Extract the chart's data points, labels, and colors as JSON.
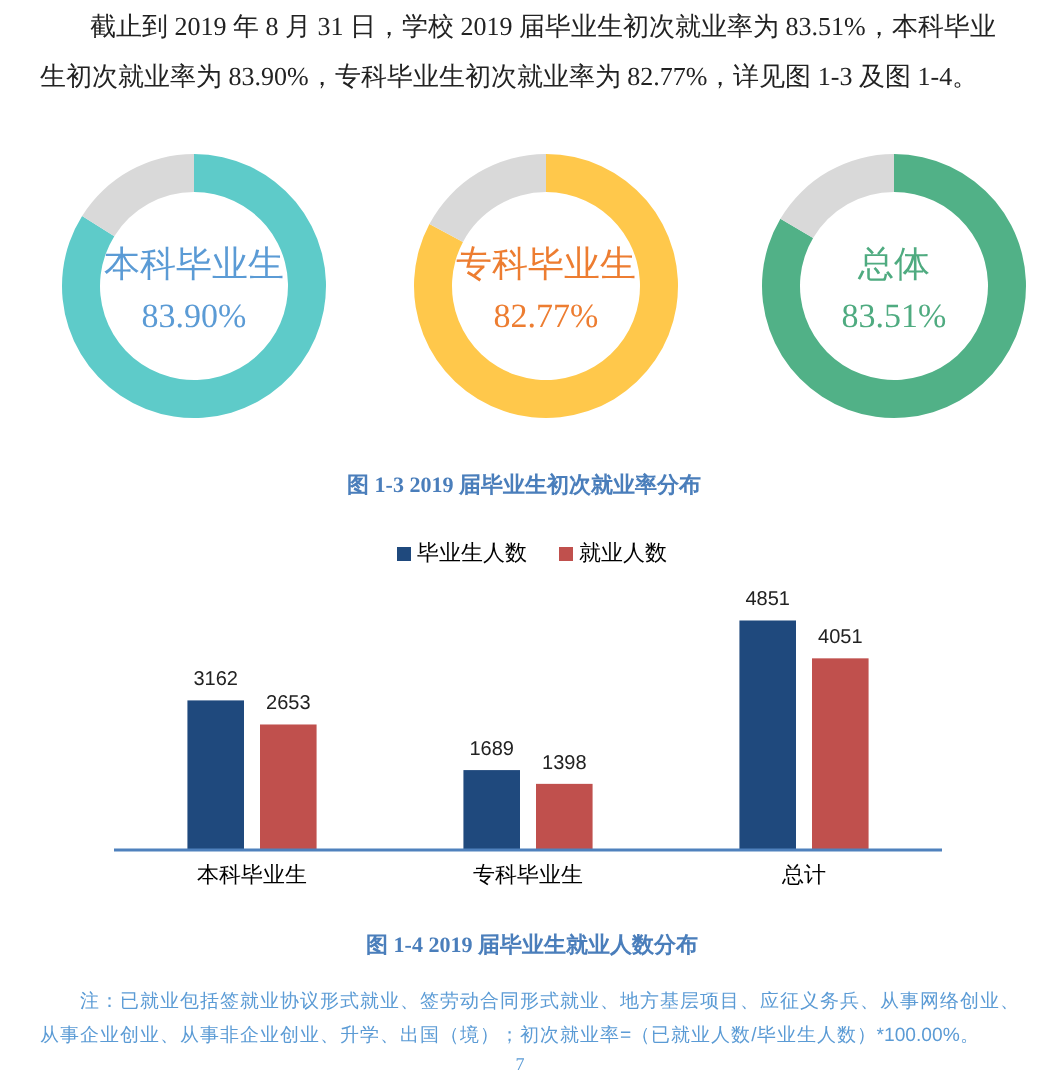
{
  "chart_data": [
    {
      "type": "donut",
      "title": "本科毕业生",
      "categories": [
        null,
        null
      ],
      "values": [
        83.9,
        16.1
      ],
      "colors": [
        "#5ecbc9",
        "#d9d9d9"
      ],
      "value_labels": [
        "83.90%",
        null
      ],
      "annotations": [
        "截止到 2019 年 8 月 31 日，学校 2019 届毕业生初次就业率为 83.51%，本科毕业生初次就业率为 83.90%，专科毕业生初次就业率为 82.77%，详见图 1-3 及图 1-4。"
      ]
    },
    {
      "type": "donut",
      "title": "专科毕业生",
      "categories": [
        null,
        null
      ],
      "values": [
        82.77,
        17.23
      ],
      "colors": [
        "#ffc84b",
        "#d9d9d9"
      ],
      "value_labels": [
        "82.77%",
        null
      ],
      "annotations": [
        "图 1-3 2019 届毕业生初次就业率分布"
      ]
    },
    {
      "type": "donut",
      "title": "总体",
      "categories": [
        null,
        null
      ],
      "values": [
        83.51,
        16.49
      ],
      "colors": [
        "#51b187",
        "#d9d9d9"
      ],
      "value_labels": [
        "83.51%",
        null
      ]
    },
    {
      "type": "bar",
      "title": "图 1-4 2019 届毕业生就业人数分布",
      "categories": [
        "本科毕业生",
        "专科毕业生",
        "总计"
      ],
      "series": [
        {
          "name": "毕业生人数",
          "color": "#1f497d",
          "values": [
            3162,
            1689,
            4851
          ]
        },
        {
          "name": "就业人数",
          "color": "#c0504d",
          "values": [
            2653,
            1398,
            4051
          ]
        }
      ],
      "data_labels": true,
      "legend": "top",
      "tick_labels": "x",
      "annotations": [
        "注：已就业包括签就业协议形式就业、签劳动合同形式就业、地方基层项目、应征义务兵、从事网络创业、从事企业创业、从事非企业创业、升学、出国（境）；初次就业率=（已就业人数/毕业生人数）*100.00%。",
        "7"
      ]
    }
  ]
}
